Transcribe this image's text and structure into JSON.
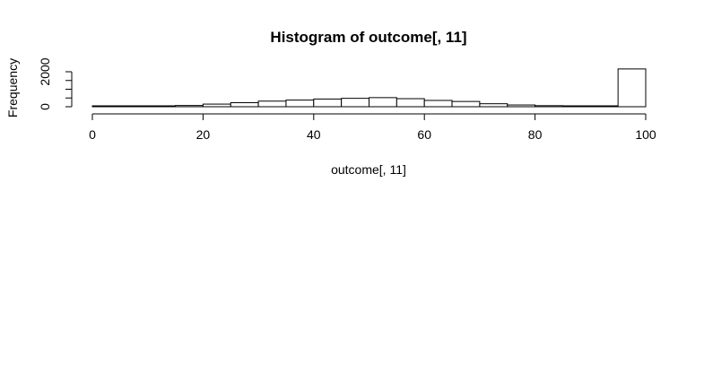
{
  "chart_data": {
    "type": "bar",
    "title": "Histogram of outcome[, 11]",
    "xlabel": "outcome[, 11]",
    "ylabel": "Frequency",
    "xlim": [
      0,
      100
    ],
    "ylim": [
      0,
      2000
    ],
    "x_ticks": [
      "0",
      "20",
      "40",
      "60",
      "80",
      "100"
    ],
    "y_ticks": [
      "0",
      "2000"
    ],
    "y_tick_values": [
      0,
      500,
      1000,
      1500,
      2000
    ],
    "x_tick_values": [
      0,
      20,
      40,
      60,
      80,
      100
    ],
    "bin_edges": [
      0,
      5,
      10,
      15,
      20,
      25,
      30,
      35,
      40,
      45,
      50,
      55,
      60,
      65,
      70,
      75,
      80,
      85,
      90,
      95,
      100
    ],
    "values": [
      15,
      20,
      50,
      70,
      150,
      230,
      320,
      380,
      440,
      480,
      520,
      460,
      360,
      300,
      170,
      100,
      60,
      30,
      20,
      2160
    ],
    "grid": false,
    "legend": "none"
  }
}
